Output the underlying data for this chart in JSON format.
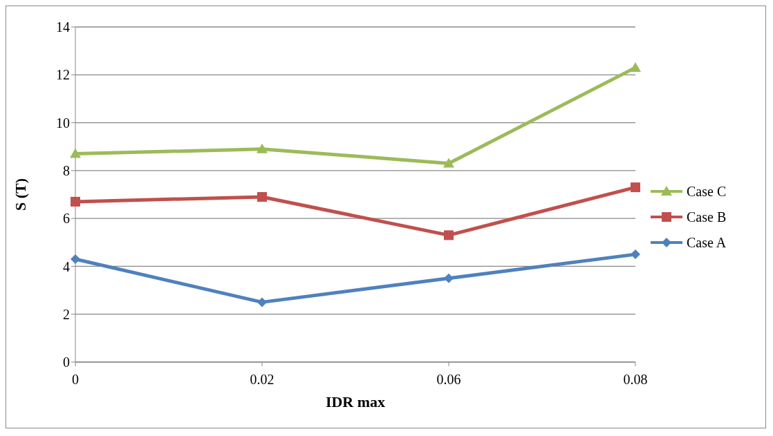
{
  "chart_data": {
    "type": "line",
    "xlabel": "IDR max",
    "ylabel": "S (T)",
    "categories": [
      "0",
      "0.02",
      "0.06",
      "0.08"
    ],
    "series": [
      {
        "name": "Case C",
        "color": "#9bbb59",
        "marker": "triangle",
        "values": [
          8.7,
          8.9,
          8.3,
          12.3
        ]
      },
      {
        "name": "Case B",
        "color": "#c0504d",
        "marker": "square",
        "values": [
          6.7,
          6.9,
          5.3,
          7.3
        ]
      },
      {
        "name": "Case A",
        "color": "#4f81bd",
        "marker": "diamond",
        "values": [
          4.3,
          2.5,
          3.5,
          4.5
        ]
      }
    ],
    "ylim": [
      0,
      14
    ],
    "yticks": [
      0,
      2,
      4,
      6,
      8,
      10,
      12,
      14
    ],
    "grid": "y",
    "legend": "right"
  }
}
